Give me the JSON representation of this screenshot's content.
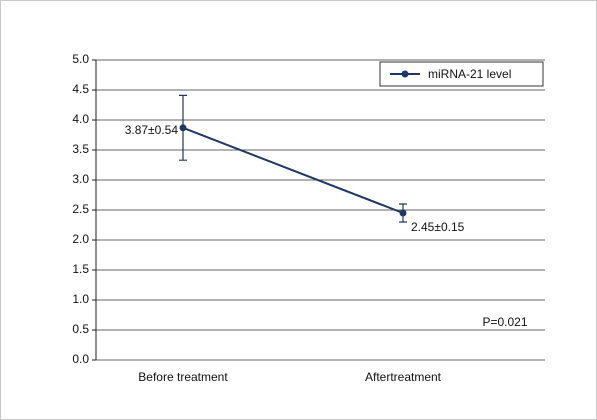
{
  "chart_data": {
    "type": "line",
    "categories": [
      "Before treatment",
      "Aftertreatment"
    ],
    "series": [
      {
        "name": "miRNA-21 level",
        "color": "#1f3864",
        "values": [
          3.87,
          2.45
        ],
        "errors": [
          0.54,
          0.15
        ],
        "value_labels": [
          "3.87±0.54",
          "2.45±0.15"
        ]
      }
    ],
    "ylim": [
      0,
      5
    ],
    "yticks": [
      {
        "value": 0,
        "label": "0.0"
      },
      0.5,
      {
        "value": 1,
        "label": "1.0"
      },
      1.5,
      {
        "value": 2,
        "label": "2.0"
      },
      2.5,
      {
        "value": 3,
        "label": "3.0"
      },
      3.5,
      {
        "value": 4,
        "label": "4.0"
      },
      4.5,
      {
        "value": 5,
        "label": "5.0"
      }
    ],
    "grid": true,
    "legend": "upper right",
    "annotation": "P=0.021"
  }
}
